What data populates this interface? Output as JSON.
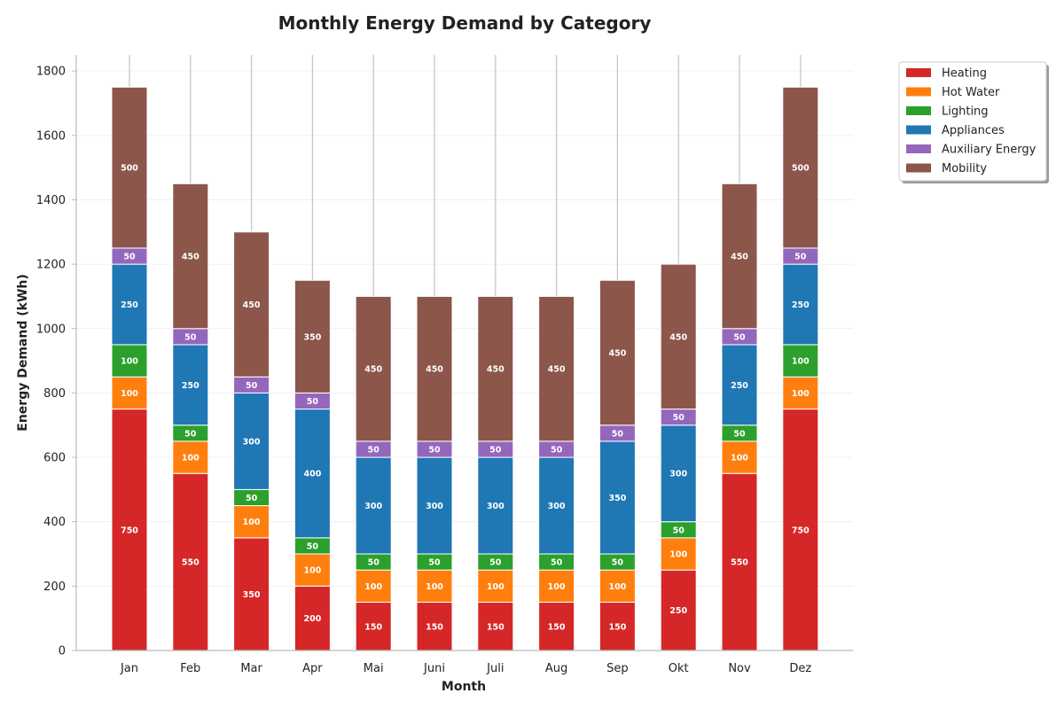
{
  "chart_data": {
    "type": "bar",
    "stacked": true,
    "title": "Monthly Energy Demand by Category",
    "xlabel": "Month",
    "ylabel": "Energy Demand (kWh)",
    "ylim": [
      0,
      1850
    ],
    "yticks": [
      0,
      200,
      400,
      600,
      800,
      1000,
      1200,
      1400,
      1600,
      1800
    ],
    "grid": true,
    "legend_position": "outside-top-right",
    "categories": [
      "Jan",
      "Feb",
      "Mar",
      "Apr",
      "Mai",
      "Juni",
      "Juli",
      "Aug",
      "Sep",
      "Okt",
      "Nov",
      "Dez"
    ],
    "series": [
      {
        "name": "Heating",
        "color": "#d62728",
        "values": [
          750,
          550,
          350,
          200,
          150,
          150,
          150,
          150,
          150,
          250,
          550,
          750
        ]
      },
      {
        "name": "Hot Water",
        "color": "#ff7f0e",
        "values": [
          100,
          100,
          100,
          100,
          100,
          100,
          100,
          100,
          100,
          100,
          100,
          100
        ]
      },
      {
        "name": "Lighting",
        "color": "#2ca02c",
        "values": [
          100,
          50,
          50,
          50,
          50,
          50,
          50,
          50,
          50,
          50,
          50,
          100
        ]
      },
      {
        "name": "Appliances",
        "color": "#1f77b4",
        "values": [
          250,
          250,
          300,
          400,
          300,
          300,
          300,
          300,
          350,
          300,
          250,
          250
        ]
      },
      {
        "name": "Auxiliary Energy",
        "color": "#9467bd",
        "values": [
          50,
          50,
          50,
          50,
          50,
          50,
          50,
          50,
          50,
          50,
          50,
          50
        ]
      },
      {
        "name": "Mobility",
        "color": "#8c564b",
        "values": [
          500,
          450,
          450,
          350,
          450,
          450,
          450,
          450,
          450,
          450,
          450,
          500
        ]
      }
    ]
  }
}
